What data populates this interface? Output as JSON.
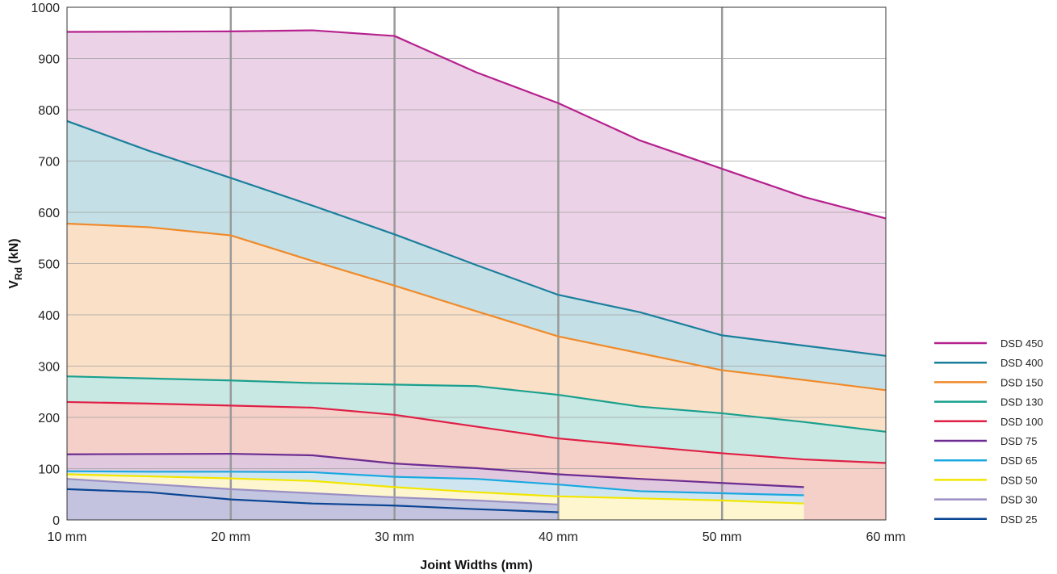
{
  "chart_data": {
    "type": "area",
    "xlabel": "Joint Widths (mm)",
    "ylabel_main": "V",
    "ylabel_sub": "Rd",
    "ylabel_unit": " (kN)",
    "x_ticks": [
      "10 mm",
      "20 mm",
      "30 mm",
      "40 mm",
      "50 mm",
      "60 mm"
    ],
    "y_ticks": [
      "0",
      "100",
      "200",
      "300",
      "400",
      "500",
      "600",
      "700",
      "800",
      "900",
      "1000"
    ],
    "xlim": [
      10,
      60
    ],
    "ylim": [
      0,
      1000
    ],
    "legend_position": "right",
    "series": [
      {
        "name": "DSD 450",
        "color": "#b5218e",
        "fill": "#ecd2e6",
        "x": [
          10,
          20,
          25,
          30,
          35,
          40,
          45,
          50,
          55,
          60
        ],
        "y": [
          952,
          953,
          955,
          944,
          873,
          813,
          740,
          685,
          630,
          588
        ]
      },
      {
        "name": "DSD 400",
        "color": "#1a7f9c",
        "fill": "#c4e0e6",
        "x": [
          10,
          15,
          20,
          25,
          30,
          35,
          40,
          45,
          50,
          55,
          60
        ],
        "y": [
          778,
          720,
          667,
          613,
          557,
          497,
          439,
          405,
          360,
          340,
          320
        ]
      },
      {
        "name": "DSD 150",
        "color": "#ef8a2a",
        "fill": "#fbe0c8",
        "x": [
          10,
          15,
          20,
          25,
          30,
          35,
          40,
          45,
          50,
          55,
          60
        ],
        "y": [
          578,
          571,
          555,
          505,
          457,
          407,
          358,
          325,
          292,
          273,
          253
        ]
      },
      {
        "name": "DSD 130",
        "color": "#1aa08e",
        "fill": "#c8e8e3",
        "x": [
          10,
          15,
          20,
          25,
          30,
          35,
          40,
          45,
          50,
          55,
          60
        ],
        "y": [
          280,
          276,
          272,
          267,
          264,
          261,
          244,
          221,
          208,
          191,
          172
        ]
      },
      {
        "name": "DSD 100",
        "color": "#e01f45",
        "fill": "#f5d0c8",
        "x": [
          10,
          15,
          20,
          25,
          30,
          35,
          40,
          45,
          50,
          55,
          60
        ],
        "y": [
          230,
          227,
          223,
          219,
          205,
          182,
          159,
          144,
          130,
          118,
          111
        ]
      },
      {
        "name": "DSD 75",
        "color": "#6d2c91",
        "fill": "#e0c8de",
        "x": [
          10,
          20,
          25,
          30,
          35,
          40,
          45,
          50,
          55
        ],
        "y": [
          128,
          129,
          126,
          110,
          101,
          89,
          80,
          72,
          64
        ]
      },
      {
        "name": "DSD 65",
        "color": "#19a9e0",
        "fill": "#cfe6f1",
        "x": [
          10,
          15,
          20,
          25,
          30,
          35,
          40,
          45,
          50,
          55
        ],
        "y": [
          95,
          94,
          94,
          93,
          84,
          80,
          69,
          56,
          52,
          48
        ]
      },
      {
        "name": "DSD 50",
        "color": "#f2e600",
        "fill": "#fdf6cf",
        "x": [
          10,
          15,
          20,
          25,
          30,
          35,
          40,
          45,
          50,
          55
        ],
        "y": [
          89,
          85,
          81,
          76,
          64,
          54,
          46,
          42,
          38,
          32
        ]
      },
      {
        "name": "DSD 30",
        "color": "#9b8fc4",
        "fill": "#c3c6e0",
        "x": [
          10,
          15,
          20,
          25,
          30,
          35,
          40
        ],
        "y": [
          80,
          70,
          60,
          52,
          44,
          38,
          30
        ]
      },
      {
        "name": "DSD 25",
        "color": "#0a4594",
        "fill": "#c4c3df",
        "x": [
          10,
          15,
          20,
          25,
          30,
          35,
          40
        ],
        "y": [
          60,
          54,
          40,
          32,
          28,
          21,
          15
        ]
      }
    ],
    "grid": true,
    "gridline_color": "#a0a0a0",
    "major_grid_color": "#9a9a9a"
  }
}
